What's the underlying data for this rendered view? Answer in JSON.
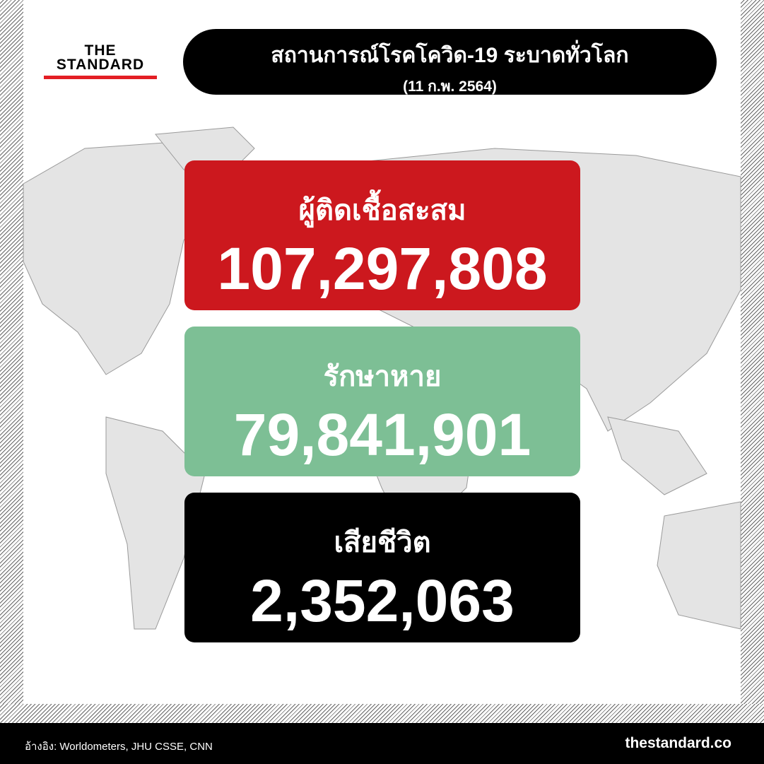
{
  "brand": {
    "logo_line1": "THE",
    "logo_line2": "STANDARD",
    "accent": "#e31e24"
  },
  "header": {
    "title": "สถานการณ์โรคโควิด-19 ระบาดทั่วโลก",
    "date": "(11 ก.พ. 2564)"
  },
  "stats": [
    {
      "label": "ผู้ติดเชื้อสะสม",
      "value": "107,297,808",
      "color": "#cc181e"
    },
    {
      "label": "รักษาหาย",
      "value": "79,841,901",
      "color": "#7dbf95"
    },
    {
      "label": "เสียชีวิต",
      "value": "2,352,063",
      "color": "#000000"
    }
  ],
  "footer": {
    "source": "อ้างอิง: Worldometers, JHU CSSE, CNN",
    "site": "thestandard.co"
  }
}
